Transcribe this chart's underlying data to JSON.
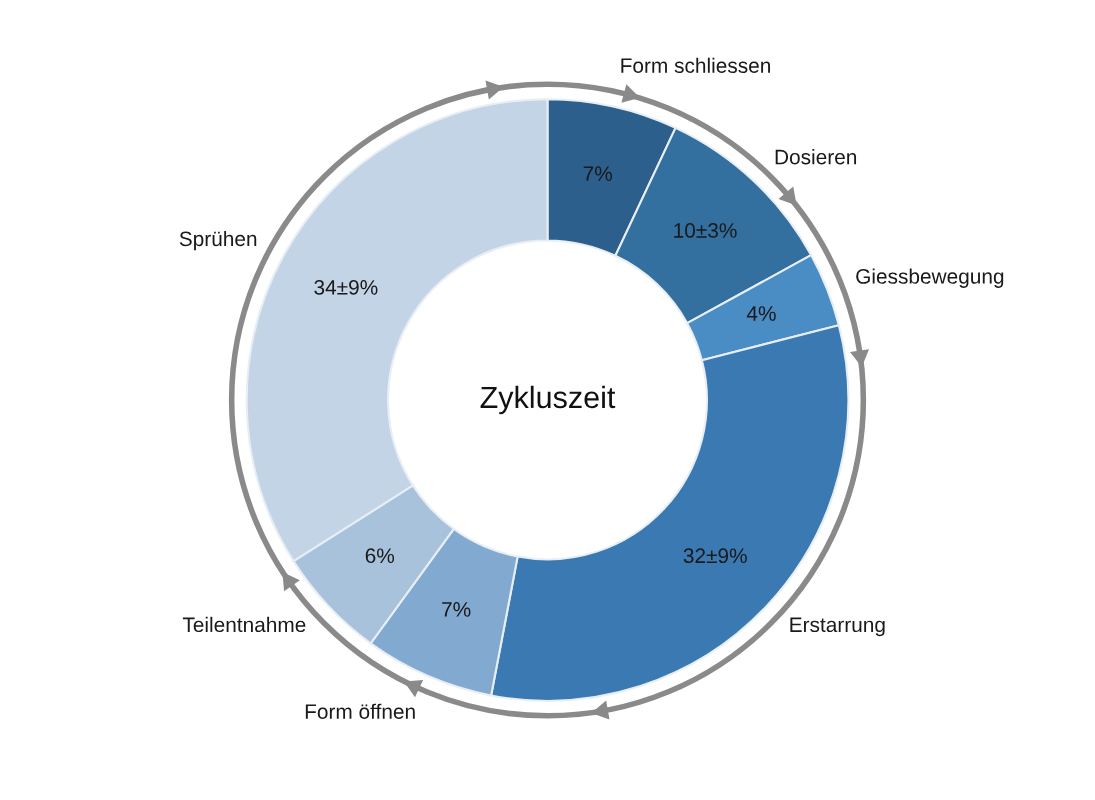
{
  "chart_data": {
    "type": "donut",
    "categories": [
      "Form schliessen",
      "Dosieren",
      "Giessbewegung",
      "Erstarrung",
      "Form öffnen",
      "Teilentnahme",
      "Sprühen"
    ],
    "values": [
      7,
      10,
      4,
      32,
      7,
      6,
      34
    ],
    "value_labels": [
      "7%",
      "10±3%",
      "4%",
      "32±9%",
      "7%",
      "6%",
      "34±9%"
    ],
    "colors": [
      "#2c5f8c",
      "#336f9f",
      "#4a8cc4",
      "#3a79b2",
      "#82a9cf",
      "#a9c2dc",
      "#c3d4e6"
    ],
    "annotations": [
      "Zykluszeit"
    ]
  }
}
